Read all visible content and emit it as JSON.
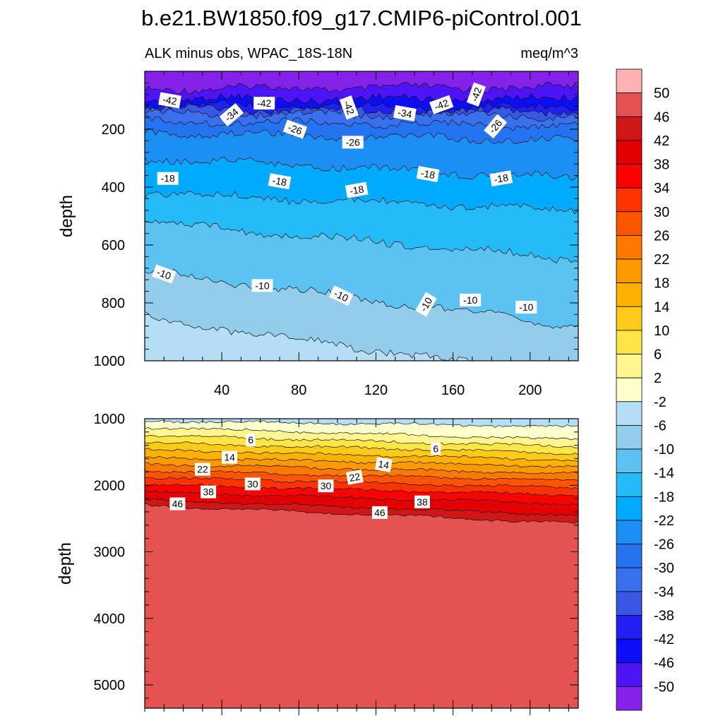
{
  "figure_title": "b.e21.BW1850.f09_g17.CMIP6-piControl.001",
  "chart_data": [
    {
      "type": "heatmap",
      "subtype": "filled-contour",
      "title": "ALK minus obs, WPAC_18S-18N",
      "units": "meq/m^3",
      "xlabel": "",
      "ylabel": "depth",
      "x_range": [
        0,
        225
      ],
      "y_range": [
        1000,
        0
      ],
      "y_reversed": true,
      "x_ticks": [
        40,
        80,
        120,
        160,
        200
      ],
      "y_ticks": [
        200,
        400,
        600,
        800,
        1000
      ],
      "contour_boundaries": [
        {
          "level": -50,
          "depths": [
            60,
            55
          ]
        },
        {
          "level": -46,
          "depths": [
            95,
            95
          ]
        },
        {
          "level": -42,
          "depths": [
            115,
            125
          ]
        },
        {
          "level": -38,
          "depths": [
            130,
            140
          ]
        },
        {
          "level": -34,
          "depths": [
            145,
            155
          ]
        },
        {
          "level": -30,
          "depths": [
            170,
            190
          ]
        },
        {
          "level": -26,
          "depths": [
            210,
            240
          ]
        },
        {
          "level": -22,
          "depths": [
            300,
            370
          ]
        },
        {
          "level": -18,
          "depths": [
            420,
            480
          ]
        },
        {
          "level": -14,
          "depths": [
            520,
            650
          ]
        },
        {
          "level": -10,
          "depths": [
            690,
            880
          ]
        },
        {
          "level": -6,
          "depths": [
            850,
            1060
          ]
        }
      ],
      "contour_labels": [
        {
          "text": "-42",
          "x": 13,
          "y": 100,
          "angle": 10
        },
        {
          "text": "-34",
          "x": 45,
          "y": 150,
          "angle": -40
        },
        {
          "text": "-42",
          "x": 62,
          "y": 110,
          "angle": 0
        },
        {
          "text": "-26",
          "x": 78,
          "y": 200,
          "angle": 20
        },
        {
          "text": "-42",
          "x": 106,
          "y": 125,
          "angle": 70
        },
        {
          "text": "-34",
          "x": 135,
          "y": 145,
          "angle": 10
        },
        {
          "text": "-42",
          "x": 154,
          "y": 115,
          "angle": -20
        },
        {
          "text": "-42",
          "x": 172,
          "y": 80,
          "angle": -70
        },
        {
          "text": "-26",
          "x": 182,
          "y": 190,
          "angle": -50
        },
        {
          "text": "-26",
          "x": 108,
          "y": 245,
          "angle": 0
        },
        {
          "text": "-18",
          "x": 12,
          "y": 370,
          "angle": 0
        },
        {
          "text": "-18",
          "x": 70,
          "y": 380,
          "angle": 10
        },
        {
          "text": "-18",
          "x": 110,
          "y": 410,
          "angle": -10
        },
        {
          "text": "-18",
          "x": 147,
          "y": 355,
          "angle": 10
        },
        {
          "text": "-18",
          "x": 185,
          "y": 370,
          "angle": -10
        },
        {
          "text": "-10",
          "x": 10,
          "y": 700,
          "angle": 20
        },
        {
          "text": "-10",
          "x": 61,
          "y": 740,
          "angle": 0
        },
        {
          "text": "-10",
          "x": 102,
          "y": 775,
          "angle": 25
        },
        {
          "text": "-10",
          "x": 146,
          "y": 805,
          "angle": -60
        },
        {
          "text": "-10",
          "x": 169,
          "y": 790,
          "angle": 0
        },
        {
          "text": "-10",
          "x": 198,
          "y": 815,
          "angle": 0
        }
      ]
    },
    {
      "type": "heatmap",
      "subtype": "filled-contour",
      "title": "",
      "xlabel": "",
      "ylabel": "depth",
      "x_range": [
        0,
        225
      ],
      "y_range": [
        5350,
        1000
      ],
      "y_reversed": true,
      "y_ticks": [
        1000,
        2000,
        3000,
        4000,
        5000
      ],
      "contour_boundaries": [
        {
          "level": -2,
          "depths": [
            1030,
            1120
          ]
        },
        {
          "level": 2,
          "depths": [
            1130,
            1320
          ]
        },
        {
          "level": 6,
          "depths": [
            1250,
            1420
          ]
        },
        {
          "level": 10,
          "depths": [
            1360,
            1520
          ]
        },
        {
          "level": 14,
          "depths": [
            1470,
            1620
          ]
        },
        {
          "level": 18,
          "depths": [
            1580,
            1720
          ]
        },
        {
          "level": 22,
          "depths": [
            1680,
            1830
          ]
        },
        {
          "level": 26,
          "depths": [
            1780,
            1930
          ]
        },
        {
          "level": 30,
          "depths": [
            1880,
            2040
          ]
        },
        {
          "level": 34,
          "depths": [
            1990,
            2150
          ]
        },
        {
          "level": 38,
          "depths": [
            2100,
            2280
          ]
        },
        {
          "level": 42,
          "depths": [
            2220,
            2450
          ]
        },
        {
          "level": 46,
          "depths": [
            2300,
            2570
          ]
        }
      ],
      "contour_labels": [
        {
          "text": "6",
          "x": 55,
          "y": 1320,
          "angle": 0
        },
        {
          "text": "14",
          "x": 44,
          "y": 1580,
          "angle": 0
        },
        {
          "text": "6",
          "x": 151,
          "y": 1450,
          "angle": 0
        },
        {
          "text": "22",
          "x": 30,
          "y": 1760,
          "angle": 0
        },
        {
          "text": "14",
          "x": 124,
          "y": 1690,
          "angle": 10
        },
        {
          "text": "22",
          "x": 109,
          "y": 1880,
          "angle": -10
        },
        {
          "text": "30",
          "x": 56,
          "y": 1980,
          "angle": 0
        },
        {
          "text": "30",
          "x": 94,
          "y": 2010,
          "angle": 0
        },
        {
          "text": "38",
          "x": 33,
          "y": 2100,
          "angle": 0
        },
        {
          "text": "38",
          "x": 144,
          "y": 2250,
          "angle": 0
        },
        {
          "text": "46",
          "x": 17,
          "y": 2280,
          "angle": 0
        },
        {
          "text": "46",
          "x": 122,
          "y": 2410,
          "angle": 0
        }
      ]
    }
  ],
  "colorbar": {
    "levels": [
      50,
      46,
      42,
      38,
      34,
      30,
      26,
      22,
      18,
      14,
      10,
      6,
      2,
      -2,
      -6,
      -10,
      -14,
      -18,
      -22,
      -26,
      -30,
      -34,
      -38,
      -42,
      -46,
      -50
    ],
    "colors": [
      "#FFB2B2",
      "#E45252",
      "#D01616",
      "#E40000",
      "#FF0000",
      "#FF3300",
      "#FF5500",
      "#FF7800",
      "#FF9900",
      "#FFB100",
      "#FFCA18",
      "#FFE545",
      "#FFF68F",
      "#FFFFCE",
      "#B3DEF5",
      "#94CCEC",
      "#5BC2F1",
      "#25BAF8",
      "#00AAFE",
      "#1C8FF4",
      "#2474F1",
      "#3A70ED",
      "#3857E4",
      "#2020F4",
      "#0D0DF8",
      "#4E14F8",
      "#8522EA"
    ]
  }
}
